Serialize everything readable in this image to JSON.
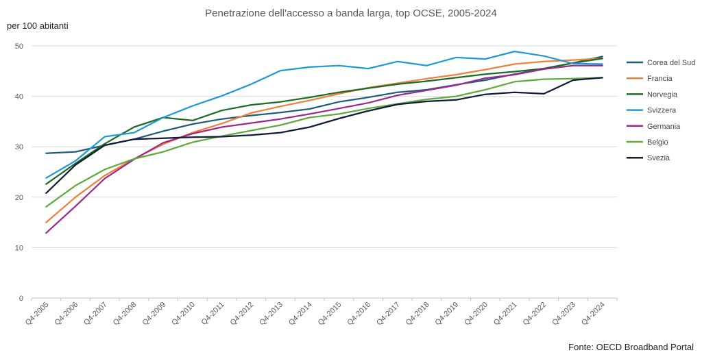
{
  "chart_data": {
    "type": "line",
    "title": "Penetrazione dell'accesso a banda larga, top OCSE, 2005-2024",
    "ylabel": "per 100 abitanti",
    "xlabel": "",
    "source": "Fonte: OECD Broadband Portal",
    "ylim": [
      0,
      50
    ],
    "yticks": [
      0,
      10,
      20,
      30,
      40,
      50
    ],
    "grid": true,
    "legend_position": "right",
    "categories": [
      "Q4-2005",
      "Q4-2006",
      "Q4-2007",
      "Q4-2008",
      "Q4-2009",
      "Q4-2010",
      "Q4-2011",
      "Q4-2012",
      "Q4-2013",
      "Q4-2014",
      "Q4-2015",
      "Q4-2016",
      "Q4-2017",
      "Q4-2018",
      "Q4-2019",
      "Q4-2020",
      "Q4-2021",
      "Q4-2022",
      "Q4-2023",
      "Q4-2024"
    ],
    "series": [
      {
        "name": "Corea del Sud",
        "color": "#1f5c7d",
        "values": [
          28.7,
          29.0,
          30.3,
          31.5,
          33.1,
          34.5,
          35.5,
          36.2,
          36.8,
          37.5,
          38.9,
          39.8,
          40.8,
          41.3,
          42.3,
          43.2,
          44.4,
          45.5,
          46.6,
          47.9
        ]
      },
      {
        "name": "Francia",
        "color": "#f07f3c",
        "values": [
          15.0,
          20.0,
          24.3,
          27.6,
          30.5,
          32.8,
          34.6,
          36.7,
          38.0,
          39.2,
          40.5,
          41.7,
          42.6,
          43.5,
          44.3,
          45.3,
          46.4,
          46.9,
          47.2,
          47.5
        ]
      },
      {
        "name": "Norvegia",
        "color": "#1e6b25",
        "values": [
          22.6,
          26.7,
          30.6,
          33.9,
          35.8,
          35.2,
          37.2,
          38.3,
          38.9,
          39.8,
          40.8,
          41.6,
          42.4,
          43.0,
          43.7,
          44.4,
          44.9,
          45.5,
          46.6,
          47.5
        ]
      },
      {
        "name": "Svizzera",
        "color": "#1f9ad4",
        "values": [
          23.8,
          27.2,
          32.0,
          32.8,
          35.8,
          38.1,
          40.1,
          42.4,
          45.1,
          45.8,
          46.1,
          45.5,
          46.9,
          46.1,
          47.7,
          47.4,
          48.9,
          48.0,
          46.5,
          46.4
        ]
      },
      {
        "name": "Germania",
        "color": "#9c2a8e",
        "values": [
          12.9,
          18.2,
          23.7,
          27.5,
          30.8,
          32.6,
          33.9,
          34.7,
          35.5,
          36.5,
          37.6,
          38.7,
          40.2,
          41.2,
          42.2,
          43.6,
          44.3,
          45.4,
          46.1,
          46.1
        ]
      },
      {
        "name": "Belgio",
        "color": "#5faa3a",
        "values": [
          18.1,
          22.3,
          25.5,
          27.6,
          29.0,
          30.9,
          32.1,
          33.2,
          34.3,
          35.8,
          36.5,
          37.6,
          38.5,
          39.4,
          40.0,
          41.3,
          42.9,
          43.4,
          43.5,
          43.7
        ]
      },
      {
        "name": "Svezia",
        "color": "#0e1c3a",
        "values": [
          20.8,
          26.4,
          30.3,
          31.5,
          31.7,
          31.9,
          32.0,
          32.3,
          32.8,
          33.9,
          35.6,
          37.1,
          38.4,
          39.0,
          39.3,
          40.4,
          40.8,
          40.5,
          43.2,
          43.7
        ]
      }
    ]
  }
}
